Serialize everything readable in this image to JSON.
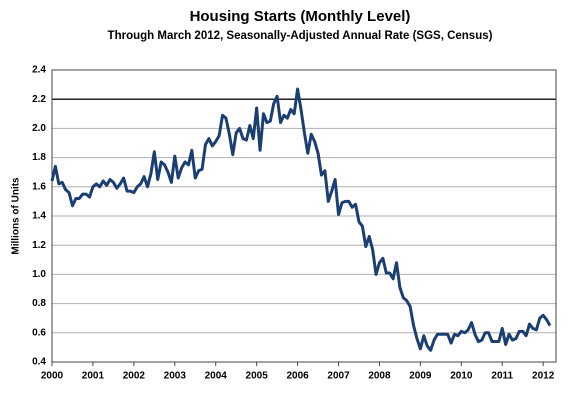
{
  "chart_data": {
    "type": "line",
    "title": "Housing Starts (Monthly Level)",
    "subtitle": "Through March 2012, Seasonally-Adjusted Annual Rate (SGS, Census)",
    "y_label": "Millions of Units",
    "categories": [
      "2000",
      null,
      null,
      null,
      null,
      null,
      null,
      null,
      null,
      null,
      null,
      null,
      "2001",
      null,
      null,
      null,
      null,
      null,
      null,
      null,
      null,
      null,
      null,
      null,
      "2002",
      null,
      null,
      null,
      null,
      null,
      null,
      null,
      null,
      null,
      null,
      null,
      "2003",
      null,
      null,
      null,
      null,
      null,
      null,
      null,
      null,
      null,
      null,
      null,
      "2004",
      null,
      null,
      null,
      null,
      null,
      null,
      null,
      null,
      null,
      null,
      null,
      "2005",
      null,
      null,
      null,
      null,
      null,
      null,
      null,
      null,
      null,
      null,
      null,
      "2006",
      null,
      null,
      null,
      null,
      null,
      null,
      null,
      null,
      null,
      null,
      null,
      "2007",
      null,
      null,
      null,
      null,
      null,
      null,
      null,
      null,
      null,
      null,
      null,
      "2008",
      null,
      null,
      null,
      null,
      null,
      null,
      null,
      null,
      null,
      null,
      null,
      "2009",
      null,
      null,
      null,
      null,
      null,
      null,
      null,
      null,
      null,
      null,
      null,
      "2010",
      null,
      null,
      null,
      null,
      null,
      null,
      null,
      null,
      null,
      null,
      null,
      "2011",
      null,
      null,
      null,
      null,
      null,
      null,
      null,
      null,
      null,
      null,
      null,
      "2012",
      null,
      null
    ],
    "series": [
      {
        "name": "Housing Starts",
        "color": "#1c3f73",
        "values": [
          1.64,
          1.74,
          1.62,
          1.63,
          1.58,
          1.56,
          1.47,
          1.52,
          1.52,
          1.55,
          1.55,
          1.53,
          1.6,
          1.62,
          1.6,
          1.64,
          1.61,
          1.65,
          1.63,
          1.59,
          1.62,
          1.66,
          1.57,
          1.57,
          1.56,
          1.6,
          1.62,
          1.67,
          1.6,
          1.69,
          1.84,
          1.65,
          1.77,
          1.75,
          1.7,
          1.63,
          1.81,
          1.66,
          1.73,
          1.77,
          1.75,
          1.85,
          1.66,
          1.71,
          1.72,
          1.89,
          1.93,
          1.88,
          1.91,
          1.95,
          2.09,
          2.07,
          1.96,
          1.82,
          1.97,
          2.0,
          1.93,
          1.92,
          2.02,
          1.93,
          2.14,
          1.85,
          2.1,
          2.04,
          2.05,
          2.17,
          2.22,
          2.04,
          2.09,
          2.07,
          2.13,
          2.1,
          2.27,
          2.13,
          1.97,
          1.83,
          1.96,
          1.91,
          1.83,
          1.68,
          1.71,
          1.5,
          1.57,
          1.65,
          1.41,
          1.49,
          1.5,
          1.5,
          1.46,
          1.48,
          1.36,
          1.33,
          1.19,
          1.26,
          1.17,
          1.0,
          1.08,
          1.11,
          1.01,
          1.01,
          0.97,
          1.08,
          0.91,
          0.84,
          0.82,
          0.78,
          0.65,
          0.56,
          0.49,
          0.58,
          0.51,
          0.48,
          0.55,
          0.59,
          0.59,
          0.59,
          0.59,
          0.53,
          0.59,
          0.58,
          0.61,
          0.6,
          0.62,
          0.67,
          0.59,
          0.54,
          0.55,
          0.6,
          0.6,
          0.54,
          0.54,
          0.54,
          0.63,
          0.52,
          0.59,
          0.55,
          0.56,
          0.61,
          0.61,
          0.58,
          0.66,
          0.63,
          0.62,
          0.7,
          0.72,
          0.69,
          0.65
        ]
      }
    ],
    "ylim": [
      0.4,
      2.4
    ],
    "yticks": [
      0.4,
      0.6,
      0.8,
      {
        "value": 1,
        "label": "1.0"
      },
      1.2,
      1.4,
      1.6,
      1.8,
      {
        "value": 2,
        "label": "2.0"
      },
      2.2,
      2.4
    ],
    "reference_line": 2.2,
    "grid": true
  }
}
